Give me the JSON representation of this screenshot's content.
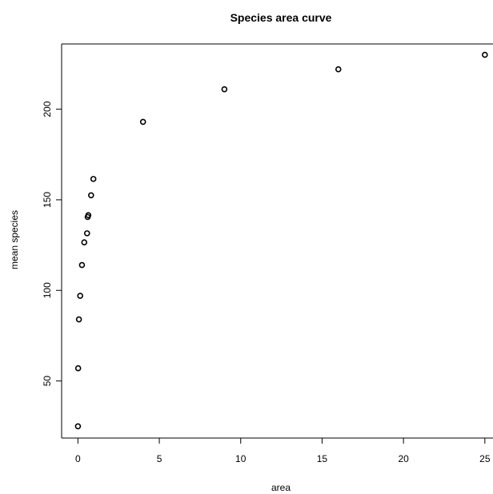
{
  "chart_data": {
    "type": "scatter",
    "title": "Species area curve",
    "xlabel": "area",
    "ylabel": "mean species",
    "xlim": [
      -1,
      25.5
    ],
    "ylim": [
      18.5,
      236
    ],
    "xticks": [
      0,
      5,
      10,
      15,
      20,
      25
    ],
    "yticks": [
      50,
      100,
      150,
      200
    ],
    "grid": false,
    "legend": "none",
    "marker": "open-circle",
    "colors": {
      "points": "#000000",
      "axes": "#000000",
      "background": "#ffffff"
    },
    "points": [
      {
        "x": 0.0039,
        "y": 25
      },
      {
        "x": 0.0156,
        "y": 57
      },
      {
        "x": 0.0625,
        "y": 84
      },
      {
        "x": 0.1406,
        "y": 97
      },
      {
        "x": 0.25,
        "y": 114
      },
      {
        "x": 0.3906,
        "y": 126.5
      },
      {
        "x": 0.5625,
        "y": 131.5
      },
      {
        "x": 0.6,
        "y": 140.5
      },
      {
        "x": 0.64,
        "y": 141.5
      },
      {
        "x": 0.81,
        "y": 152.5
      },
      {
        "x": 0.95,
        "y": 161.5
      },
      {
        "x": 4,
        "y": 193
      },
      {
        "x": 9,
        "y": 211
      },
      {
        "x": 16,
        "y": 222
      },
      {
        "x": 25,
        "y": 230
      }
    ]
  }
}
